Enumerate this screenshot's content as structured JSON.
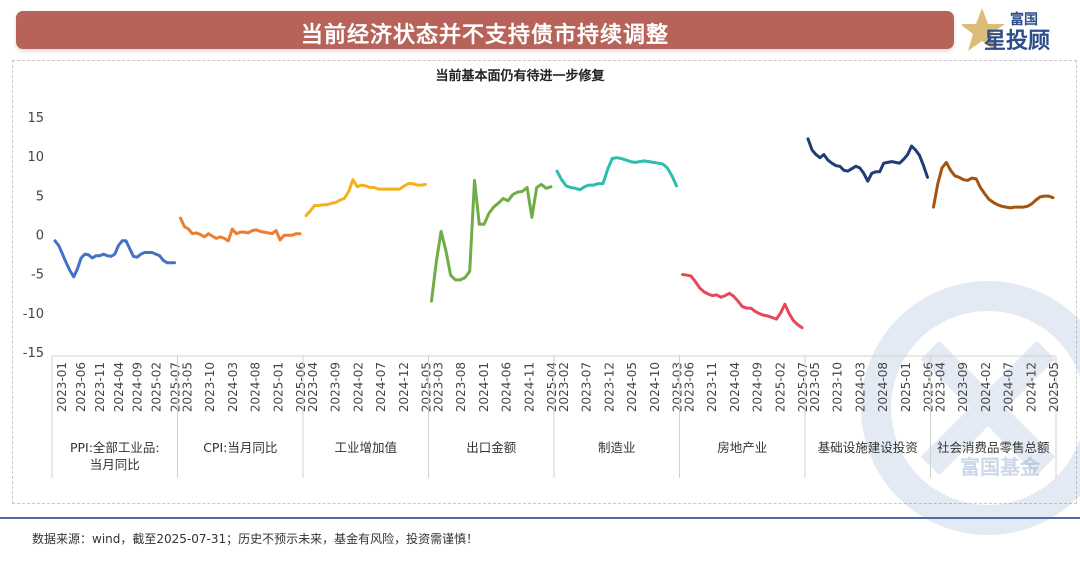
{
  "header": {
    "title": "当前经济状态并不支持债市持续调整",
    "logo_top": "富国",
    "logo_main": "星投顾"
  },
  "watermark": {
    "text": "富国基金"
  },
  "footer": {
    "note": "数据来源：wind，截至2025-07-31；历史不预示未来，基金有风险，投资需谨慎！"
  },
  "chart_data": {
    "type": "line",
    "title": "当前基本面仍有待进一步修复",
    "ylim": [
      -15,
      15
    ],
    "yticks": [
      15,
      10,
      5,
      0,
      -5,
      -10,
      -15
    ],
    "grid": false,
    "legend": "none",
    "groups": [
      {
        "name": "PPI:全部工业品:当月同比",
        "color": "#4472c4",
        "ticks": [
          "2023-01",
          "2023-06",
          "2023-11",
          "2024-04",
          "2024-09",
          "2025-02",
          "2025-07"
        ],
        "values": [
          -0.8,
          -1.4,
          -2.5,
          -3.6,
          -4.6,
          -5.4,
          -4.4,
          -3.0,
          -2.5,
          -2.6,
          -3.0,
          -2.7,
          -2.7,
          -2.5,
          -2.7,
          -2.8,
          -2.5,
          -1.4,
          -0.8,
          -0.8,
          -1.8,
          -2.8,
          -2.9,
          -2.5,
          -2.3,
          -2.3,
          -2.3,
          -2.5,
          -2.7,
          -3.3,
          -3.6,
          -3.6,
          -3.6
        ]
      },
      {
        "name": "CPI:当月同比",
        "color": "#ed7d31",
        "ticks": [
          "2023-05",
          "2023-10",
          "2024-03",
          "2024-08",
          "2025-01",
          "2025-06"
        ],
        "values": [
          2.1,
          1.0,
          0.7,
          0.1,
          0.2,
          0.0,
          -0.3,
          0.1,
          -0.2,
          -0.5,
          -0.3,
          -0.5,
          -0.8,
          0.7,
          0.1,
          0.3,
          0.3,
          0.2,
          0.5,
          0.6,
          0.4,
          0.3,
          0.2,
          0.1,
          0.5,
          -0.7,
          -0.1,
          -0.1,
          -0.1,
          0.1,
          0.1
        ]
      },
      {
        "name": "工业增加值",
        "color": "#f2b21e",
        "ticks": [
          "2023-04",
          "2023-09",
          "2024-02",
          "2024-07",
          "2024-12",
          "2025-05"
        ],
        "values": [
          2.4,
          3.0,
          3.7,
          3.7,
          3.8,
          3.8,
          4.0,
          4.1,
          4.4,
          4.6,
          5.5,
          7.0,
          6.1,
          6.3,
          6.2,
          6.0,
          6.0,
          5.8,
          5.8,
          5.8,
          5.8,
          5.8,
          5.8,
          6.2,
          6.5,
          6.5,
          6.3,
          6.3,
          6.4
        ]
      },
      {
        "name": "出口金额",
        "color": "#70ad47",
        "ticks": [
          "2023-03",
          "2023-08",
          "2024-01",
          "2024-06",
          "2024-11",
          "2025-04"
        ],
        "values": [
          -8.5,
          -3.5,
          0.4,
          -2.0,
          -5.2,
          -5.8,
          -5.8,
          -5.5,
          -4.7,
          6.9,
          1.3,
          1.3,
          2.7,
          3.5,
          4.0,
          4.6,
          4.3,
          5.1,
          5.4,
          5.5,
          6.0,
          2.2,
          6.0,
          6.4,
          5.9,
          6.1
        ]
      },
      {
        "name": "制造业",
        "color": "#2dbeb0",
        "ticks": [
          "2023-02",
          "2023-07",
          "2023-12",
          "2024-05",
          "2024-10",
          "2025-03"
        ],
        "values": [
          8.1,
          7.0,
          6.2,
          6.0,
          5.9,
          5.7,
          6.1,
          6.3,
          6.3,
          6.5,
          6.5,
          8.3,
          9.7,
          9.8,
          9.7,
          9.5,
          9.3,
          9.2,
          9.3,
          9.4,
          9.3,
          9.2,
          9.1,
          9.0,
          8.5,
          7.5,
          6.2
        ]
      },
      {
        "name": "房地产业",
        "color": "#e8465a",
        "ticks": [
          "2023-06",
          "2023-11",
          "2024-04",
          "2024-09",
          "2025-02",
          "2025-07"
        ],
        "values": [
          -5.1,
          -5.2,
          -5.3,
          -6.0,
          -6.8,
          -7.3,
          -7.6,
          -7.8,
          -7.7,
          -8.0,
          -7.8,
          -7.5,
          -7.9,
          -8.5,
          -9.2,
          -9.4,
          -9.4,
          -9.8,
          -10.1,
          -10.3,
          -10.4,
          -10.6,
          -10.8,
          -10.0,
          -8.9,
          -10.1,
          -11.0,
          -11.5,
          -11.9
        ]
      },
      {
        "name": "基础设施建设投资",
        "color": "#1f3c78",
        "ticks": [
          "2023-05",
          "2023-10",
          "2024-03",
          "2024-08",
          "2025-01",
          "2025-06"
        ],
        "values": [
          12.2,
          10.8,
          10.2,
          9.8,
          10.2,
          9.5,
          9.1,
          8.8,
          8.7,
          8.2,
          8.1,
          8.4,
          8.7,
          8.5,
          7.8,
          6.8,
          7.8,
          8.0,
          8.0,
          9.1,
          9.2,
          9.3,
          9.2,
          9.1,
          9.6,
          10.2,
          11.3,
          10.8,
          10.1,
          8.8,
          7.3
        ]
      },
      {
        "name": "社会消费品零售总额",
        "color": "#a5530f",
        "ticks": [
          "2023-04",
          "2023-09",
          "2024-02",
          "2024-07",
          "2024-12",
          "2025-05"
        ],
        "values": [
          3.5,
          6.5,
          8.5,
          9.2,
          8.2,
          7.5,
          7.3,
          7.0,
          6.9,
          7.2,
          7.1,
          6.0,
          5.2,
          4.5,
          4.1,
          3.8,
          3.6,
          3.5,
          3.4,
          3.5,
          3.5,
          3.5,
          3.6,
          3.9,
          4.4,
          4.8,
          4.9,
          4.9,
          4.7
        ]
      }
    ]
  }
}
